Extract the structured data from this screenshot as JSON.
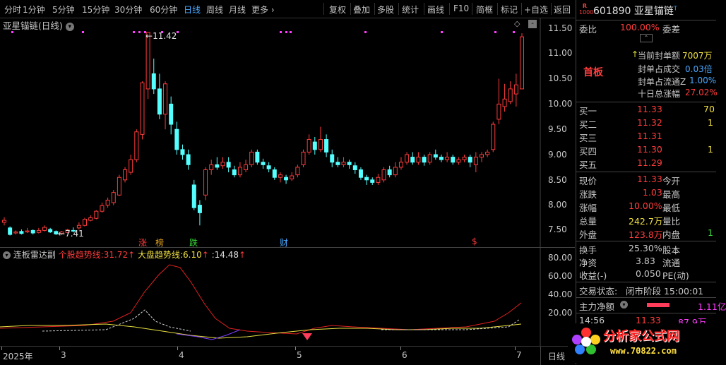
{
  "toolbar": {
    "periods": [
      "分时",
      "1分钟",
      "5分钟",
      "15分钟",
      "30分钟",
      "60分钟",
      "日线",
      "周线",
      "月线",
      "更多"
    ],
    "active": "日线",
    "tools": [
      "复权",
      "叠加",
      "多股",
      "统计",
      "画线",
      "F10",
      "简框",
      "标记",
      "+自选",
      "返回"
    ]
  },
  "main": {
    "title": "亚星锚链",
    "period_label": "(日线)",
    "high_label": "11.42",
    "low_label": "7.41",
    "markers": [
      "涨",
      "榜",
      "跌",
      "财",
      "$"
    ],
    "yticks": [
      "11.50",
      "11.00",
      "10.50",
      "10.00",
      "9.50",
      "9.00",
      "8.50",
      "8.00",
      "7.50"
    ]
  },
  "indicator": {
    "name": "连板雷达副",
    "line1_label": "个股趋势线:",
    "line1_value": "31.72",
    "line2_label": "大盘趋势线:",
    "line2_value": "6.10",
    "line3_label": ":",
    "line3_value": "14.48",
    "yticks": [
      "80.00",
      "60.00",
      "40.00",
      "20.00"
    ]
  },
  "xaxis": {
    "labels": [
      "2025年",
      "3",
      "4",
      "5",
      "6",
      "7"
    ],
    "period": "日线"
  },
  "quote": {
    "badge_top": "R",
    "badge_bottom": "1000",
    "code": "601890",
    "name": "亚星锚链",
    "name_suffix": "T",
    "weibi_label": "委比",
    "weibi_value": "100.00%",
    "weicha_label": "委差",
    "status_tag": "首板",
    "seal_amount_label": "当前封单额",
    "seal_amount_value": "7007万",
    "seal_turnover_label": "封单占成交",
    "seal_turnover_value": "0.03倍",
    "seal_float_label": "封单占流通Z",
    "seal_float_value": "1.00%",
    "ten_day_label": "十日总涨幅",
    "ten_day_value": "27.02%",
    "bids": [
      {
        "label": "买一",
        "price": "11.33",
        "vol": "70"
      },
      {
        "label": "买二",
        "price": "11.32",
        "vol": "1"
      },
      {
        "label": "买三",
        "price": "11.31",
        "vol": ""
      },
      {
        "label": "买四",
        "price": "11.30",
        "vol": "1"
      },
      {
        "label": "买五",
        "price": "11.29",
        "vol": ""
      }
    ],
    "price_label": "现价",
    "price_value": "11.33",
    "open_label": "今开",
    "change_label": "涨跌",
    "change_value": "1.03",
    "high_label": "最高",
    "pct_label": "涨幅",
    "pct_value": "10.00%",
    "low_label": "最低",
    "vol_label": "总量",
    "vol_value": "242.7万",
    "vr_label": "量比",
    "outer_label": "外盘",
    "outer_value": "123.8万",
    "inner_label": "内盘",
    "inner_value": "1",
    "turnover_label": "换手",
    "turnover_value": "25.30%",
    "equity_label": "股本",
    "netasset_label": "净资",
    "netasset_value": "3.83",
    "float_label": "流通",
    "eps_label": "收益(-)",
    "eps_value": "0.050",
    "pe_label": "PE(动)",
    "trade_status_label": "交易状态:",
    "trade_status_value": "闭市阶段 15:00:01",
    "main_net_label": "主力净额",
    "main_net_value": "1.11亿",
    "tick_time": "14:56",
    "tick_price": "11.33",
    "tick_vol": "87.9万"
  },
  "watermark": {
    "text": "分析家公式网",
    "url": "www.70822.com"
  },
  "colors": {
    "up": "#ff3c3c",
    "down": "#54ffff",
    "ma_red": "#e02020",
    "ma_yellow": "#e8e040",
    "ma_purple": "#7a3cff",
    "dot": "#ff3cff"
  }
}
